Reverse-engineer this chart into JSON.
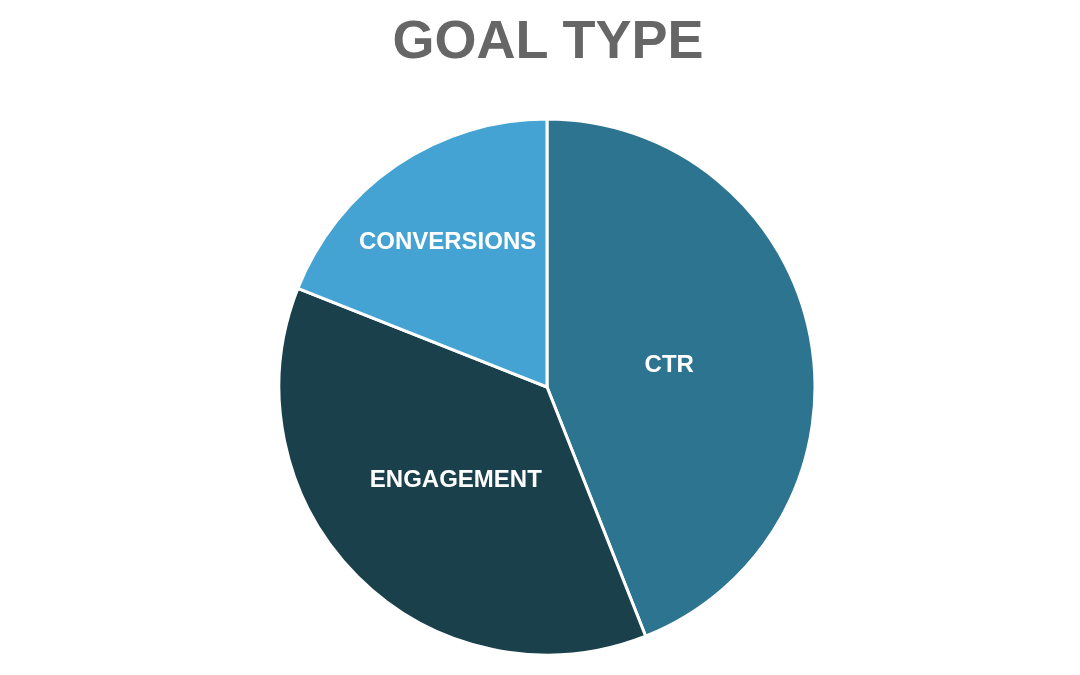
{
  "chart_data": {
    "type": "pie",
    "title": "GOAL TYPE",
    "categories": [
      "CTR",
      "ENGAGEMENT",
      "CONVERSIONS"
    ],
    "values": [
      44,
      37,
      19
    ],
    "colors": [
      "#2c7490",
      "#1a404c",
      "#44a3d3"
    ]
  }
}
